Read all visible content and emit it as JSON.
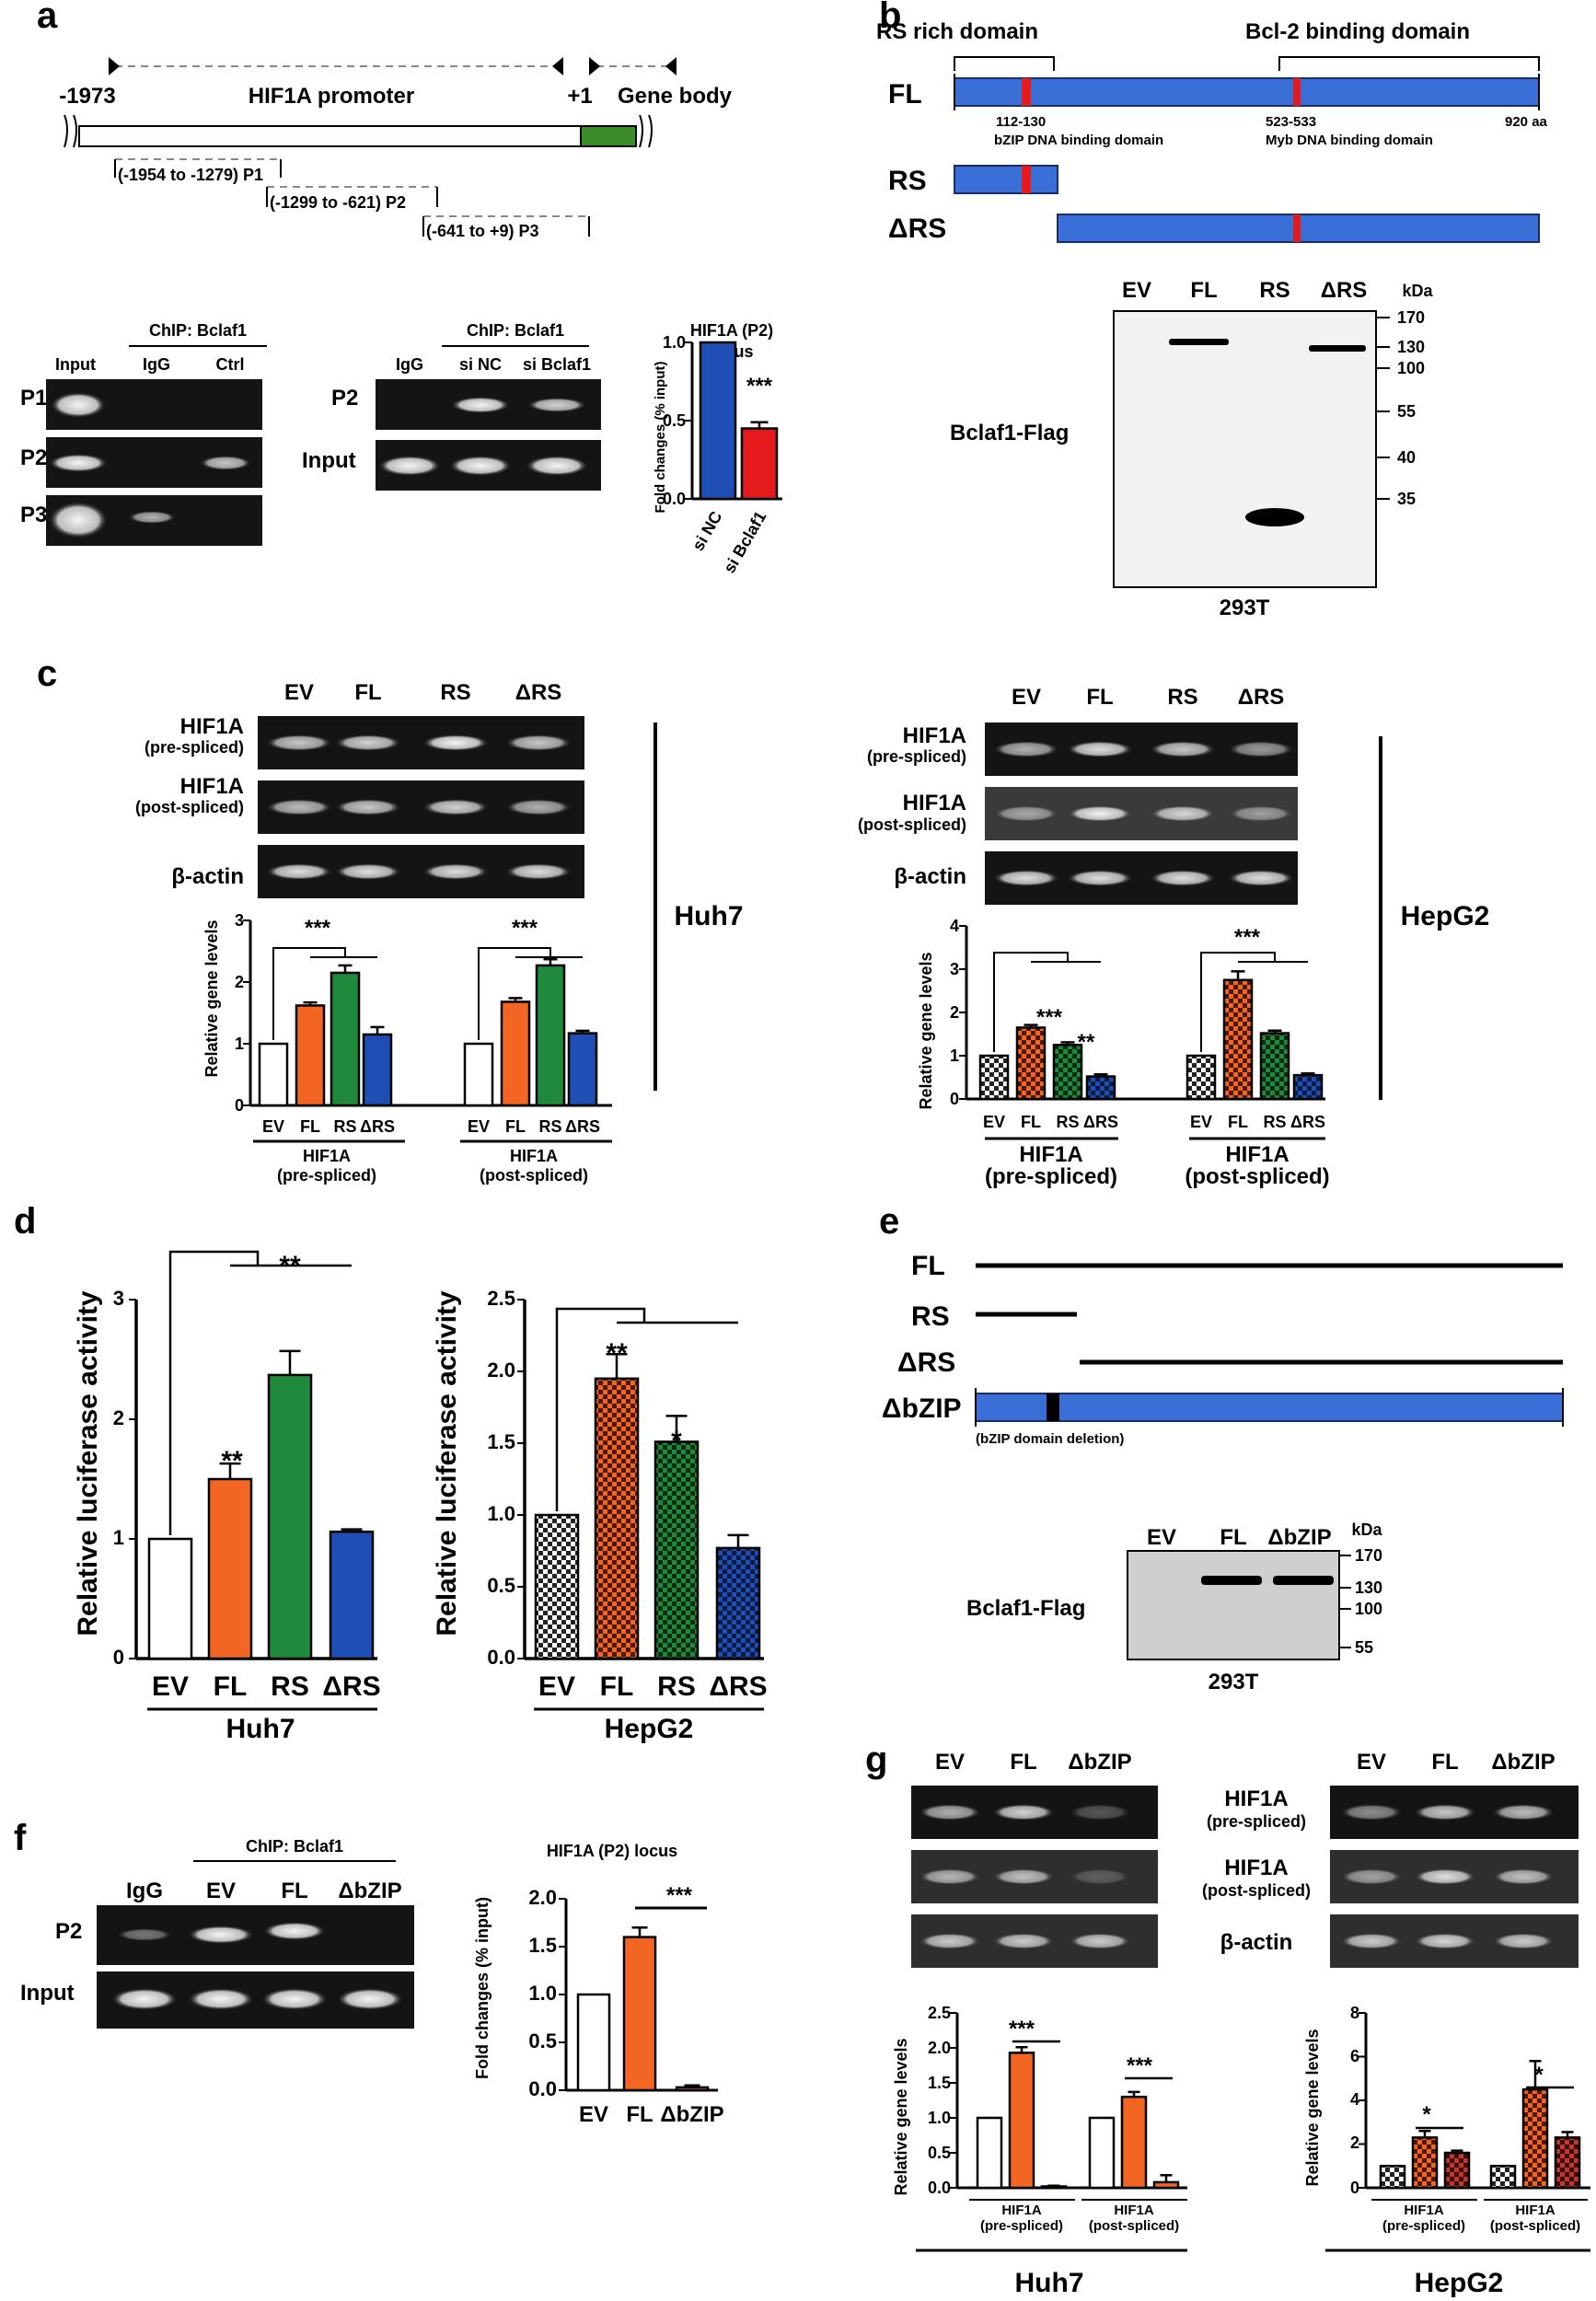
{
  "colors": {
    "ev": "#ffffff",
    "fl": "#f26522",
    "rs": "#1f8a3b",
    "drs": "#1f4eb4",
    "sinc": "#1f4eb4",
    "sibclaf": "#e41a1c",
    "domain": "#3a6fd8",
    "gel": "#141414"
  },
  "panel_a": {
    "letter": "a",
    "promoter_start": "-1973",
    "promoter_label": "HIF1A promoter",
    "tss": "+1",
    "gene_body": "Gene body",
    "p1": "(-1954 to -1279) P1",
    "p2": "(-1299 to -621) P2",
    "p3": "(-641 to +9) P3",
    "chip_title": "ChIP: Bclaf1",
    "gel1_cols": [
      "Input",
      "IgG",
      "Ctrl"
    ],
    "gel1_rows": [
      "P1",
      "P2",
      "P3"
    ],
    "gel2_cols": [
      "IgG",
      "si NC",
      "si Bclaf1"
    ],
    "gel2_rows": [
      "P2",
      "Input"
    ],
    "chart_title_1": "HIF1A (P2)",
    "chart_title_2": "locus",
    "ylabel": "Fold changes (% input)",
    "categories": [
      "si NC",
      "si Bclaf1"
    ],
    "ticks": [
      "0.0",
      "0.5",
      "1.0"
    ],
    "sig": "***"
  },
  "panel_b": {
    "letter": "b",
    "rs_domain": "RS rich domain",
    "bcl2_domain": "Bcl-2 binding domain",
    "rows": [
      "FL",
      "RS",
      "ΔRS"
    ],
    "pos1": "112-130",
    "pos1_name": "bZIP DNA binding domain",
    "pos2": "523-533",
    "pos2_name": "Myb DNA binding domain",
    "length": "920 aa",
    "lanes": [
      "EV",
      "FL",
      "RS",
      "ΔRS"
    ],
    "kda": "kDa",
    "markers": [
      "170",
      "130",
      "100",
      "55",
      "40",
      "35"
    ],
    "blot_label": "Bclaf1-Flag",
    "cell": "293T"
  },
  "panel_c": {
    "letter": "c",
    "lanes": [
      "EV",
      "FL",
      "RS",
      "ΔRS"
    ],
    "rows": [
      {
        "name": "HIF1A",
        "sub": "(pre-spliced)"
      },
      {
        "name": "HIF1A",
        "sub": "(post-spliced)"
      },
      {
        "name": "β-actin",
        "sub": ""
      }
    ],
    "ylabel": "Relative gene levels",
    "group1": "HIF1A",
    "group1_sub": "(pre-spliced)",
    "group2": "HIF1A",
    "group2_sub": "(post-spliced)",
    "huh7": {
      "cell": "Huh7",
      "ticks": [
        "0",
        "1",
        "2",
        "3"
      ],
      "sig1": "***",
      "sig2": "***"
    },
    "hepg2": {
      "cell": "HepG2",
      "ticks": [
        "0",
        "1",
        "2",
        "3",
        "4"
      ],
      "sig1": "***",
      "sig_fl": "***",
      "sig_rs": "**"
    }
  },
  "panel_d": {
    "letter": "d",
    "ylabel": "Relative luciferase activity",
    "categories": [
      "EV",
      "FL",
      "RS",
      "ΔRS"
    ],
    "huh7": {
      "cell": "Huh7",
      "ticks": [
        "0",
        "1",
        "2",
        "3"
      ],
      "sig_fl": "**",
      "sig_rs": "**"
    },
    "hepg2": {
      "cell": "HepG2",
      "ticks": [
        "0.0",
        "0.5",
        "1.0",
        "1.5",
        "2.0",
        "2.5"
      ],
      "sig_fl": "**",
      "sig_rs": "*"
    }
  },
  "panel_e": {
    "letter": "e",
    "rows": [
      "FL",
      "RS",
      "ΔRS",
      "ΔbZIP"
    ],
    "deletion": "(bZIP domain deletion)",
    "lanes": [
      "EV",
      "FL",
      "ΔbZIP"
    ],
    "kda": "kDa",
    "markers": [
      "170",
      "130",
      "100",
      "55"
    ],
    "blot_label": "Bclaf1-Flag",
    "cell": "293T"
  },
  "panel_f": {
    "letter": "f",
    "chip_title": "ChIP: Bclaf1",
    "lanes": [
      "IgG",
      "EV",
      "FL",
      "ΔbZIP"
    ],
    "rows": [
      "P2",
      "Input"
    ],
    "chart_title": "HIF1A (P2) locus",
    "ylabel": "Fold changes (% input)",
    "categories": [
      "EV",
      "FL",
      "ΔbZIP"
    ],
    "ticks": [
      "0.0",
      "0.5",
      "1.0",
      "1.5",
      "2.0"
    ],
    "sig": "***"
  },
  "panel_g": {
    "letter": "g",
    "lanes": [
      "EV",
      "FL",
      "ΔbZIP"
    ],
    "rows": [
      {
        "name": "HIF1A",
        "sub": "(pre-spliced)"
      },
      {
        "name": "HIF1A",
        "sub": "(post-spliced)"
      },
      {
        "name": "β-actin",
        "sub": ""
      }
    ],
    "ylabel": "Relative gene levels",
    "group1": "HIF1A",
    "group1_sub": "(pre-spliced)",
    "group2": "HIF1A",
    "group2_sub": "(post-spliced)",
    "huh7": {
      "cell": "Huh7",
      "ticks": [
        "0.0",
        "0.5",
        "1.0",
        "1.5",
        "2.0",
        "2.5"
      ],
      "sig1": "***",
      "sig2": "***"
    },
    "hepg2": {
      "cell": "HepG2",
      "ticks": [
        "0",
        "2",
        "4",
        "6",
        "8"
      ],
      "sig1": "*",
      "sig2": "*"
    }
  },
  "chart_data": [
    {
      "id": "a_chip",
      "type": "bar",
      "title": "HIF1A (P2) locus",
      "ylabel": "Fold changes (% input)",
      "categories": [
        "si NC",
        "si Bclaf1"
      ],
      "values": [
        1.0,
        0.45
      ],
      "errors": [
        0,
        0.04
      ],
      "ylim": [
        0,
        1.0
      ]
    },
    {
      "id": "c_huh7",
      "type": "bar",
      "ylabel": "Relative gene levels",
      "ylim": [
        0,
        3
      ],
      "groups": [
        "HIF1A (pre-spliced)",
        "HIF1A (post-spliced)"
      ],
      "categories": [
        "EV",
        "FL",
        "RS",
        "ΔRS"
      ],
      "series": [
        {
          "values": [
            1.0,
            1.62,
            2.15,
            1.15
          ],
          "errors": [
            0,
            0.05,
            0.12,
            0.12
          ]
        },
        {
          "values": [
            1.0,
            1.68,
            2.27,
            1.17
          ],
          "errors": [
            0,
            0.06,
            0.1,
            0.04
          ]
        }
      ]
    },
    {
      "id": "c_hepg2",
      "type": "bar",
      "ylabel": "Relative gene levels",
      "ylim": [
        0,
        4
      ],
      "groups": [
        "HIF1A (pre-spliced)",
        "HIF1A (post-spliced)"
      ],
      "categories": [
        "EV",
        "FL",
        "RS",
        "ΔRS"
      ],
      "series": [
        {
          "values": [
            1.0,
            1.65,
            1.25,
            0.52
          ],
          "errors": [
            0,
            0.06,
            0.06,
            0.05
          ]
        },
        {
          "values": [
            1.0,
            2.75,
            1.52,
            0.55
          ],
          "errors": [
            0,
            0.2,
            0.06,
            0.04
          ]
        }
      ]
    },
    {
      "id": "d_huh7",
      "type": "bar",
      "ylabel": "Relative luciferase activity",
      "ylim": [
        0,
        3
      ],
      "categories": [
        "EV",
        "FL",
        "RS",
        "ΔRS"
      ],
      "values": [
        1.0,
        1.5,
        2.37,
        1.06
      ],
      "errors": [
        0,
        0.13,
        0.2,
        0.02
      ]
    },
    {
      "id": "d_hepg2",
      "type": "bar",
      "ylabel": "Relative luciferase activity",
      "ylim": [
        0,
        2.5
      ],
      "categories": [
        "EV",
        "FL",
        "RS",
        "ΔRS"
      ],
      "values": [
        1.0,
        1.95,
        1.51,
        0.77
      ],
      "errors": [
        0,
        0.17,
        0.18,
        0.09
      ]
    },
    {
      "id": "f_chip",
      "type": "bar",
      "title": "HIF1A (P2) locus",
      "ylabel": "Fold changes (% input)",
      "ylim": [
        0,
        2.0
      ],
      "categories": [
        "EV",
        "FL",
        "ΔbZIP"
      ],
      "values": [
        1.0,
        1.6,
        0.03
      ],
      "errors": [
        0,
        0.1,
        0.02
      ]
    },
    {
      "id": "g_huh7",
      "type": "bar",
      "ylabel": "Relative gene levels",
      "ylim": [
        0,
        2.5
      ],
      "groups": [
        "HIF1A (pre-spliced)",
        "HIF1A (post-spliced)"
      ],
      "categories": [
        "EV",
        "FL",
        "ΔbZIP"
      ],
      "series": [
        {
          "values": [
            1.0,
            1.93,
            0.02
          ],
          "errors": [
            0,
            0.08,
            0.01
          ]
        },
        {
          "values": [
            1.0,
            1.3,
            0.08
          ],
          "errors": [
            0,
            0.07,
            0.1
          ]
        }
      ]
    },
    {
      "id": "g_hepg2",
      "type": "bar",
      "ylabel": "Relative gene levels",
      "ylim": [
        0,
        8
      ],
      "groups": [
        "HIF1A (pre-spliced)",
        "HIF1A (post-spliced)"
      ],
      "categories": [
        "EV",
        "FL",
        "ΔbZIP"
      ],
      "series": [
        {
          "values": [
            1.0,
            2.3,
            1.6
          ],
          "errors": [
            0,
            0.3,
            0.1
          ]
        },
        {
          "values": [
            1.0,
            4.5,
            2.3
          ],
          "errors": [
            0,
            1.3,
            0.25
          ]
        }
      ]
    }
  ]
}
